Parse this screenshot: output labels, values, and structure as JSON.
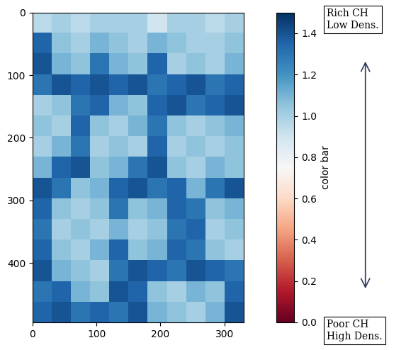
{
  "chart_data": {
    "type": "heatmap",
    "cells": [
      [
        0.95,
        1.0,
        0.95,
        1.0,
        1.0,
        1.0,
        0.9,
        1.0,
        1.0,
        0.95,
        1.0
      ],
      [
        1.35,
        1.05,
        1.0,
        1.1,
        1.05,
        1.0,
        1.1,
        1.05,
        1.0,
        1.0,
        1.05
      ],
      [
        1.4,
        1.1,
        1.05,
        1.3,
        1.1,
        1.05,
        1.35,
        1.0,
        1.05,
        1.0,
        1.1
      ],
      [
        1.3,
        1.4,
        1.35,
        1.4,
        1.35,
        1.4,
        1.3,
        1.35,
        1.4,
        1.3,
        1.35
      ],
      [
        1.0,
        1.05,
        1.3,
        1.35,
        1.1,
        1.05,
        1.35,
        1.4,
        1.3,
        1.35,
        1.4
      ],
      [
        1.05,
        1.0,
        1.35,
        1.05,
        1.0,
        1.1,
        1.3,
        1.05,
        1.0,
        1.05,
        1.1
      ],
      [
        1.0,
        1.1,
        1.3,
        1.0,
        1.05,
        1.0,
        1.35,
        1.0,
        1.05,
        1.0,
        1.05
      ],
      [
        1.1,
        1.35,
        1.4,
        1.05,
        1.1,
        1.3,
        1.4,
        1.05,
        1.0,
        1.1,
        1.05
      ],
      [
        1.4,
        1.3,
        1.05,
        1.1,
        1.35,
        1.4,
        1.3,
        1.35,
        1.1,
        1.3,
        1.4
      ],
      [
        1.35,
        1.05,
        1.0,
        1.05,
        1.3,
        1.05,
        1.1,
        1.35,
        1.3,
        1.05,
        1.1
      ],
      [
        1.3,
        1.0,
        1.05,
        1.0,
        1.1,
        1.0,
        1.05,
        1.3,
        1.35,
        1.0,
        1.05
      ],
      [
        1.35,
        1.05,
        1.0,
        1.1,
        1.35,
        1.05,
        1.1,
        1.35,
        1.3,
        1.05,
        1.0
      ],
      [
        1.4,
        1.1,
        1.05,
        1.0,
        1.3,
        1.4,
        1.35,
        1.3,
        1.4,
        1.35,
        1.3
      ],
      [
        1.3,
        1.35,
        1.1,
        1.05,
        1.4,
        1.35,
        1.05,
        1.0,
        1.1,
        1.05,
        1.35
      ],
      [
        1.35,
        1.4,
        1.3,
        1.35,
        1.3,
        1.4,
        1.1,
        1.05,
        1.0,
        1.1,
        1.4
      ]
    ],
    "xlim": [
      0,
      330
    ],
    "ylim": [
      495,
      0
    ],
    "xticks": [
      0,
      100,
      200,
      300
    ],
    "yticks": [
      0,
      100,
      200,
      300,
      400
    ],
    "colorbar_label": "color bar",
    "colorbar_range": [
      0.0,
      1.5
    ],
    "colorbar_ticks": [
      0.0,
      0.2,
      0.4,
      0.6,
      0.8,
      1.0,
      1.2,
      1.4
    ],
    "annotations": [
      "Rich CH\nLow Dens.",
      "Poor CH\nHigh Dens."
    ]
  }
}
